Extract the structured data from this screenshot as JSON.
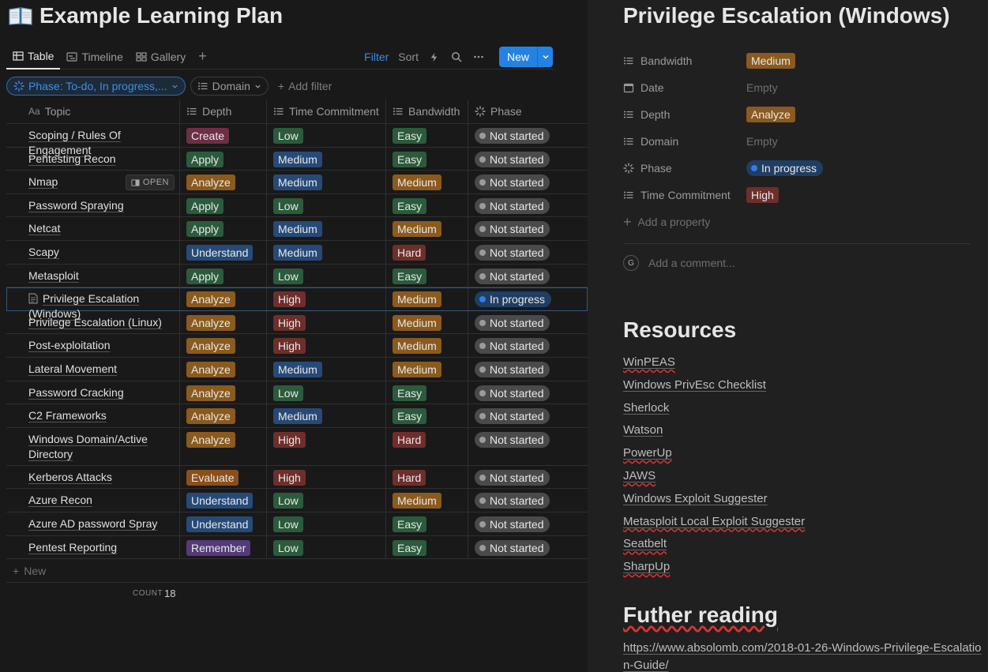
{
  "page": {
    "title": "Example Learning Plan",
    "icon": "open-book-icon"
  },
  "views": [
    {
      "label": "Table",
      "icon": "table-icon",
      "active": true
    },
    {
      "label": "Timeline",
      "icon": "timeline-icon",
      "active": false
    },
    {
      "label": "Gallery",
      "icon": "gallery-icon",
      "active": false
    }
  ],
  "toolbar": {
    "filter_label": "Filter",
    "sort_label": "Sort",
    "new_label": "New"
  },
  "filters": {
    "phase_chip": "Phase: To-do, In progress,...",
    "domain_chip": "Domain",
    "add_filter": "Add filter"
  },
  "table": {
    "columns": [
      "Topic",
      "Depth",
      "Time Commitment",
      "Bandwidth",
      "Phase"
    ],
    "open_label": "OPEN",
    "rows": [
      {
        "topic": "Scoping / Rules Of Engagement",
        "depth": "Create",
        "time": "Low",
        "bandwidth": "Easy",
        "phase": "Not started"
      },
      {
        "topic": "Pentesting Recon",
        "depth": "Apply",
        "time": "Medium",
        "bandwidth": "Easy",
        "phase": "Not started"
      },
      {
        "topic": "Nmap",
        "depth": "Analyze",
        "time": "Medium",
        "bandwidth": "Medium",
        "phase": "Not started"
      },
      {
        "topic": "Password Spraying",
        "depth": "Apply",
        "time": "Low",
        "bandwidth": "Easy",
        "phase": "Not started"
      },
      {
        "topic": "Netcat",
        "depth": "Apply",
        "time": "Medium",
        "bandwidth": "Medium",
        "phase": "Not started"
      },
      {
        "topic": "Scapy",
        "depth": "Understand",
        "time": "Medium",
        "bandwidth": "Hard",
        "phase": "Not started"
      },
      {
        "topic": "Metasploit",
        "depth": "Apply",
        "time": "Low",
        "bandwidth": "Easy",
        "phase": "Not started"
      },
      {
        "topic": "Privilege Escalation (Windows)",
        "depth": "Analyze",
        "time": "High",
        "bandwidth": "Medium",
        "phase": "In progress"
      },
      {
        "topic": "Privilege Escalation (Linux)",
        "depth": "Analyze",
        "time": "High",
        "bandwidth": "Medium",
        "phase": "Not started"
      },
      {
        "topic": "Post-exploitation",
        "depth": "Analyze",
        "time": "High",
        "bandwidth": "Medium",
        "phase": "Not started"
      },
      {
        "topic": "Lateral Movement",
        "depth": "Analyze",
        "time": "Medium",
        "bandwidth": "Medium",
        "phase": "Not started"
      },
      {
        "topic": "Password Cracking",
        "depth": "Analyze",
        "time": "Low",
        "bandwidth": "Easy",
        "phase": "Not started"
      },
      {
        "topic": "C2 Frameworks",
        "depth": "Analyze",
        "time": "Medium",
        "bandwidth": "Easy",
        "phase": "Not started"
      },
      {
        "topic": "Windows Domain/Active Directory",
        "depth": "Analyze",
        "time": "High",
        "bandwidth": "Hard",
        "phase": "Not started"
      },
      {
        "topic": "Kerberos Attacks",
        "depth": "Evaluate",
        "time": "High",
        "bandwidth": "Hard",
        "phase": "Not started"
      },
      {
        "topic": "Azure Recon",
        "depth": "Understand",
        "time": "Low",
        "bandwidth": "Medium",
        "phase": "Not started"
      },
      {
        "topic": "Azure AD password Spray",
        "depth": "Understand",
        "time": "Low",
        "bandwidth": "Easy",
        "phase": "Not started"
      },
      {
        "topic": "Pentest Reporting",
        "depth": "Remember",
        "time": "Low",
        "bandwidth": "Easy",
        "phase": "Not started"
      }
    ],
    "new_row_label": "New",
    "count_label": "COUNT",
    "count_value": "18"
  },
  "tag_colors": {
    "Create": "#6e2e45",
    "Apply": "#2b5b3c",
    "Analyze": "#8a5a1e",
    "Understand": "#264a78",
    "Evaluate": "#8a4f1a",
    "Remember": "#553a78",
    "Low": "#2b5b3c",
    "Medium": "#264a78",
    "High": "#6e2e2a",
    "Easy": "#2b5b3c",
    "Medium_bandwidth": "#8a5a1e",
    "Hard": "#6e2e2a",
    "Not started": "#4a4a4a",
    "In progress": "#1f3e63",
    "not_started_dot": "#9b9b9b",
    "in_progress_dot": "#2f7fe0"
  },
  "detail": {
    "title": "Privilege Escalation (Windows)",
    "properties": [
      {
        "name": "Bandwidth",
        "icon": "list-icon",
        "value": "Medium",
        "kind": "tag",
        "color": "#8a5a1e"
      },
      {
        "name": "Date",
        "icon": "calendar-icon",
        "value": "Empty",
        "kind": "empty"
      },
      {
        "name": "Depth",
        "icon": "list-icon",
        "value": "Analyze",
        "kind": "tag",
        "color": "#8a5a1e"
      },
      {
        "name": "Domain",
        "icon": "list-icon",
        "value": "Empty",
        "kind": "empty"
      },
      {
        "name": "Phase",
        "icon": "status-icon",
        "value": "In progress",
        "kind": "status"
      },
      {
        "name": "Time Commitment",
        "icon": "list-icon",
        "value": "High",
        "kind": "tag",
        "color": "#6e2e2a"
      }
    ],
    "add_property": "Add a property",
    "avatar_initial": "G",
    "comment_placeholder": "Add a comment...",
    "resources_heading": "Resources",
    "resources": [
      "WinPEAS",
      "Windows PrivEsc Checklist",
      "Sherlock",
      "Watson",
      "PowerUp",
      "JAWS",
      "Windows Exploit Suggester",
      "Metasploit Local Exploit Suggester",
      "Seatbelt",
      "SharpUp"
    ],
    "reading_heading": "Futher reading",
    "reading_link": "https://www.absolomb.com/2018-01-26-Windows-Privilege-Escalation-Guide/"
  }
}
